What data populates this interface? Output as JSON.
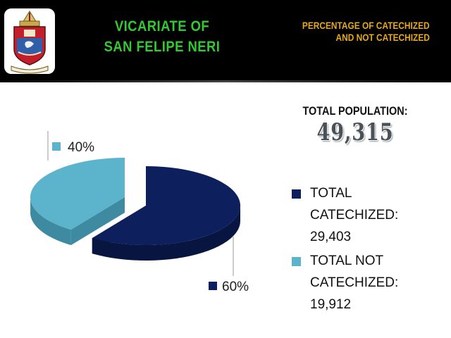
{
  "header": {
    "title_line1": "VICARIATE OF",
    "title_line2": "SAN FELIPE NERI",
    "subtitle_line1": "PERCENTAGE OF CATECHIZED",
    "subtitle_line2": "AND NOT CATECHIZED",
    "logo_text": "RCAM"
  },
  "population": {
    "label": "TOTAL POPULATION:",
    "value": "49,315"
  },
  "legend": [
    {
      "label_line1": "TOTAL",
      "label_line2": "CATECHIZED:",
      "label_line3": "29,403"
    },
    {
      "label_line1": "TOTAL NOT",
      "label_line2": "CATECHIZED:",
      "label_line3": "19,912"
    }
  ],
  "chart_data": {
    "type": "pie",
    "categories": [
      "TOTAL CATECHIZED",
      "TOTAL NOT CATECHIZED"
    ],
    "values": [
      29403,
      19912
    ],
    "data_labels": [
      "60%",
      "40%"
    ],
    "colors": [
      "#0d1f5c",
      "#5bb3cc"
    ],
    "side_colors": [
      "#081540",
      "#3e8aa1"
    ],
    "style": "3d-exploded",
    "legend_position": "right"
  }
}
